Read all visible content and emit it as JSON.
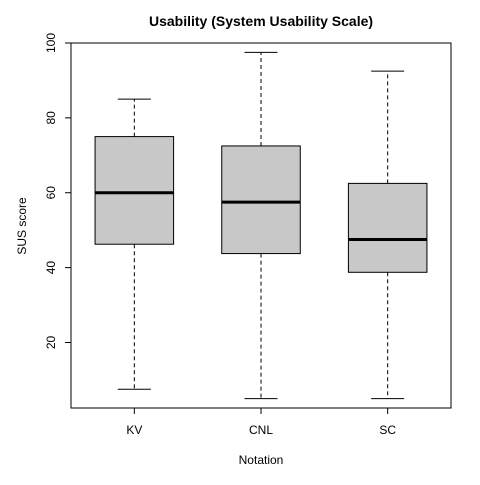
{
  "chart_data": {
    "type": "box",
    "title": "Usability (System Usability Scale)",
    "xlabel": "Notation",
    "ylabel": "SUS score",
    "ylim": [
      2.5,
      100
    ],
    "yticks": [
      20,
      40,
      60,
      80,
      100
    ],
    "grid": false,
    "legend": "none",
    "categories": [
      "KV",
      "CNL",
      "SC"
    ],
    "boxes": [
      {
        "category": "KV",
        "min": 7.5,
        "q1": 46.25,
        "median": 60.0,
        "q3": 75.0,
        "max": 85.0
      },
      {
        "category": "CNL",
        "min": 5.0,
        "q1": 43.75,
        "median": 57.5,
        "q3": 72.5,
        "max": 97.5
      },
      {
        "category": "SC",
        "min": 5.0,
        "q1": 38.75,
        "median": 47.5,
        "q3": 62.5,
        "max": 92.5
      }
    ],
    "colors": {
      "box_fill": "#c8c8c8",
      "stroke": "#000000"
    }
  }
}
